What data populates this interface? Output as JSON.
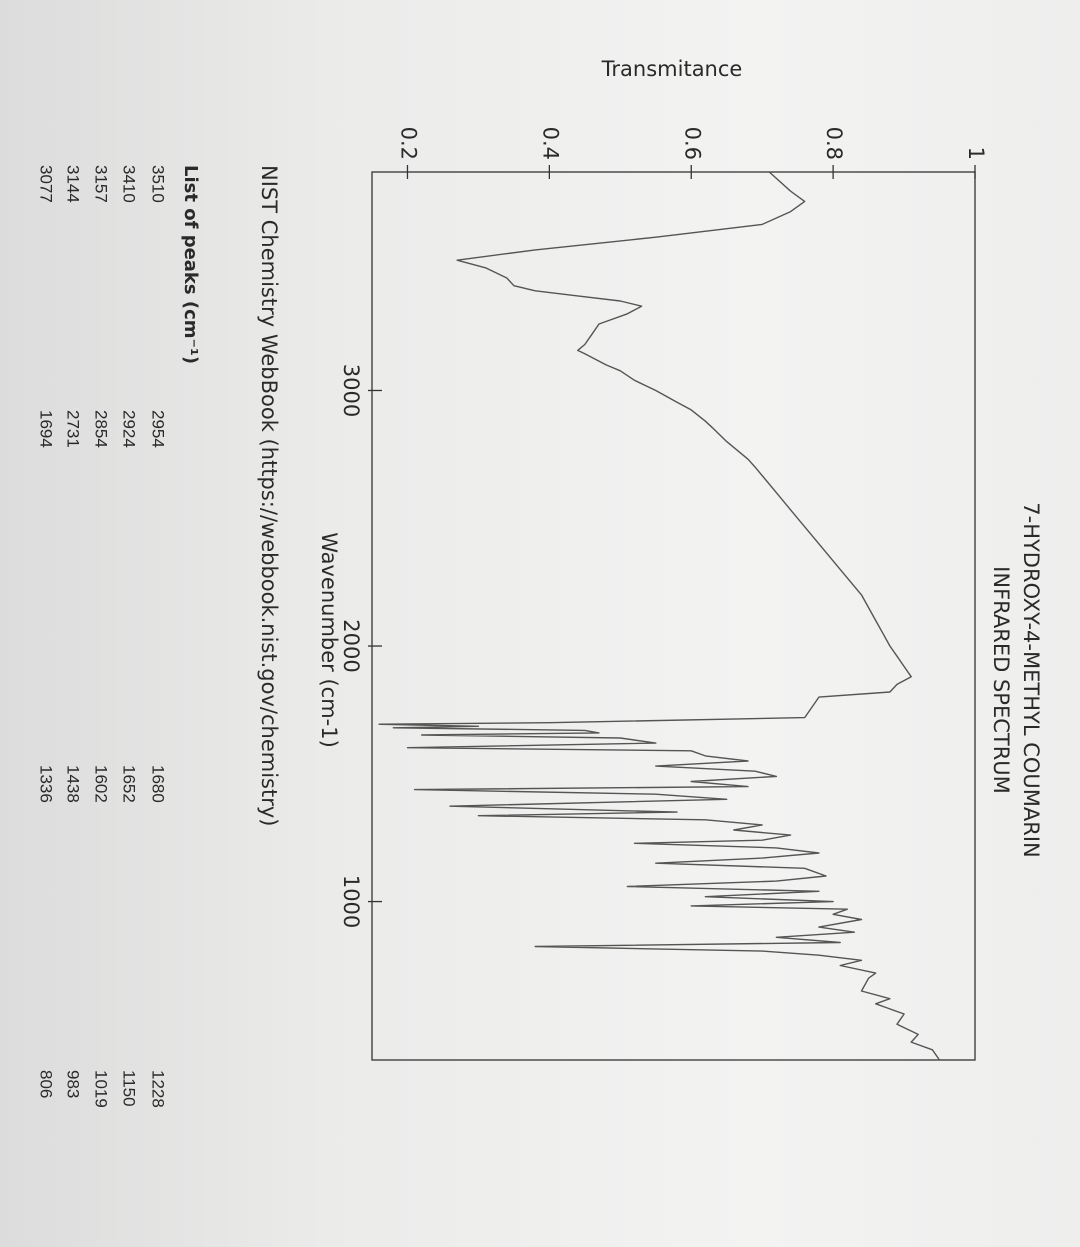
{
  "chart_data": {
    "type": "line",
    "title": "7-HYDROXY-4-METHYL COUMARIN",
    "subtitle": "INFRARED SPECTRUM",
    "x_label": "Wavenumber (cm-1)",
    "y_label": "Transmitance",
    "x": [
      3855,
      3780,
      3740,
      3700,
      3650,
      3600,
      3550,
      3510,
      3480,
      3440,
      3410,
      3390,
      3370,
      3350,
      3330,
      3300,
      3260,
      3220,
      3180,
      3157,
      3144,
      3100,
      3077,
      3040,
      3000,
      2954,
      2924,
      2880,
      2854,
      2800,
      2731,
      2700,
      2600,
      2500,
      2400,
      2300,
      2200,
      2100,
      2050,
      2000,
      1960,
      1920,
      1880,
      1850,
      1820,
      1800,
      1760,
      1720,
      1700,
      1694,
      1686,
      1680,
      1670,
      1660,
      1652,
      1640,
      1620,
      1602,
      1590,
      1570,
      1550,
      1530,
      1510,
      1490,
      1470,
      1450,
      1438,
      1420,
      1400,
      1373,
      1350,
      1336,
      1320,
      1300,
      1280,
      1260,
      1240,
      1228,
      1210,
      1190,
      1170,
      1150,
      1130,
      1100,
      1080,
      1059,
      1040,
      1019,
      1000,
      983,
      970,
      950,
      930,
      900,
      880,
      860,
      840,
      824,
      806,
      790,
      770,
      750,
      720,
      700,
      650,
      620,
      600,
      560,
      520,
      480,
      450,
      420,
      380
    ],
    "values": [
      0.71,
      0.74,
      0.76,
      0.74,
      0.7,
      0.55,
      0.38,
      0.27,
      0.31,
      0.34,
      0.35,
      0.38,
      0.44,
      0.5,
      0.53,
      0.51,
      0.47,
      0.46,
      0.45,
      0.44,
      0.45,
      0.48,
      0.5,
      0.52,
      0.55,
      0.58,
      0.6,
      0.62,
      0.63,
      0.65,
      0.68,
      0.69,
      0.72,
      0.75,
      0.78,
      0.81,
      0.84,
      0.86,
      0.87,
      0.88,
      0.89,
      0.9,
      0.91,
      0.89,
      0.88,
      0.78,
      0.77,
      0.76,
      0.4,
      0.16,
      0.3,
      0.18,
      0.45,
      0.47,
      0.22,
      0.5,
      0.55,
      0.2,
      0.6,
      0.62,
      0.68,
      0.55,
      0.69,
      0.72,
      0.6,
      0.68,
      0.21,
      0.55,
      0.65,
      0.26,
      0.58,
      0.3,
      0.62,
      0.7,
      0.66,
      0.74,
      0.7,
      0.52,
      0.72,
      0.78,
      0.7,
      0.55,
      0.76,
      0.79,
      0.72,
      0.51,
      0.78,
      0.62,
      0.8,
      0.6,
      0.82,
      0.8,
      0.84,
      0.78,
      0.83,
      0.72,
      0.81,
      0.38,
      0.7,
      0.78,
      0.84,
      0.81,
      0.86,
      0.85,
      0.84,
      0.88,
      0.86,
      0.9,
      0.89,
      0.92,
      0.91,
      0.94,
      0.95
    ],
    "color": "#555555",
    "xlim": [
      3855,
      380
    ],
    "ylim": [
      0.15,
      1
    ],
    "xticks": [
      3000,
      2000,
      1000
    ],
    "yticks": [
      0.2,
      0.4,
      0.6,
      0.8,
      1
    ]
  },
  "source_note": "NIST Chemistry WebBook (https://webbook.nist.gov/chemistry)",
  "peaks": {
    "title": "List of peaks (cm⁻¹)",
    "columns": [
      [
        "3510",
        "3410",
        "3157",
        "3144",
        "3077"
      ],
      [
        "2954",
        "2924",
        "2854",
        "2731",
        "1694"
      ],
      [
        "1680",
        "1652",
        "1602",
        "1438",
        "1336"
      ],
      [
        "1228",
        "1150",
        "1019",
        "983",
        "806"
      ]
    ]
  }
}
